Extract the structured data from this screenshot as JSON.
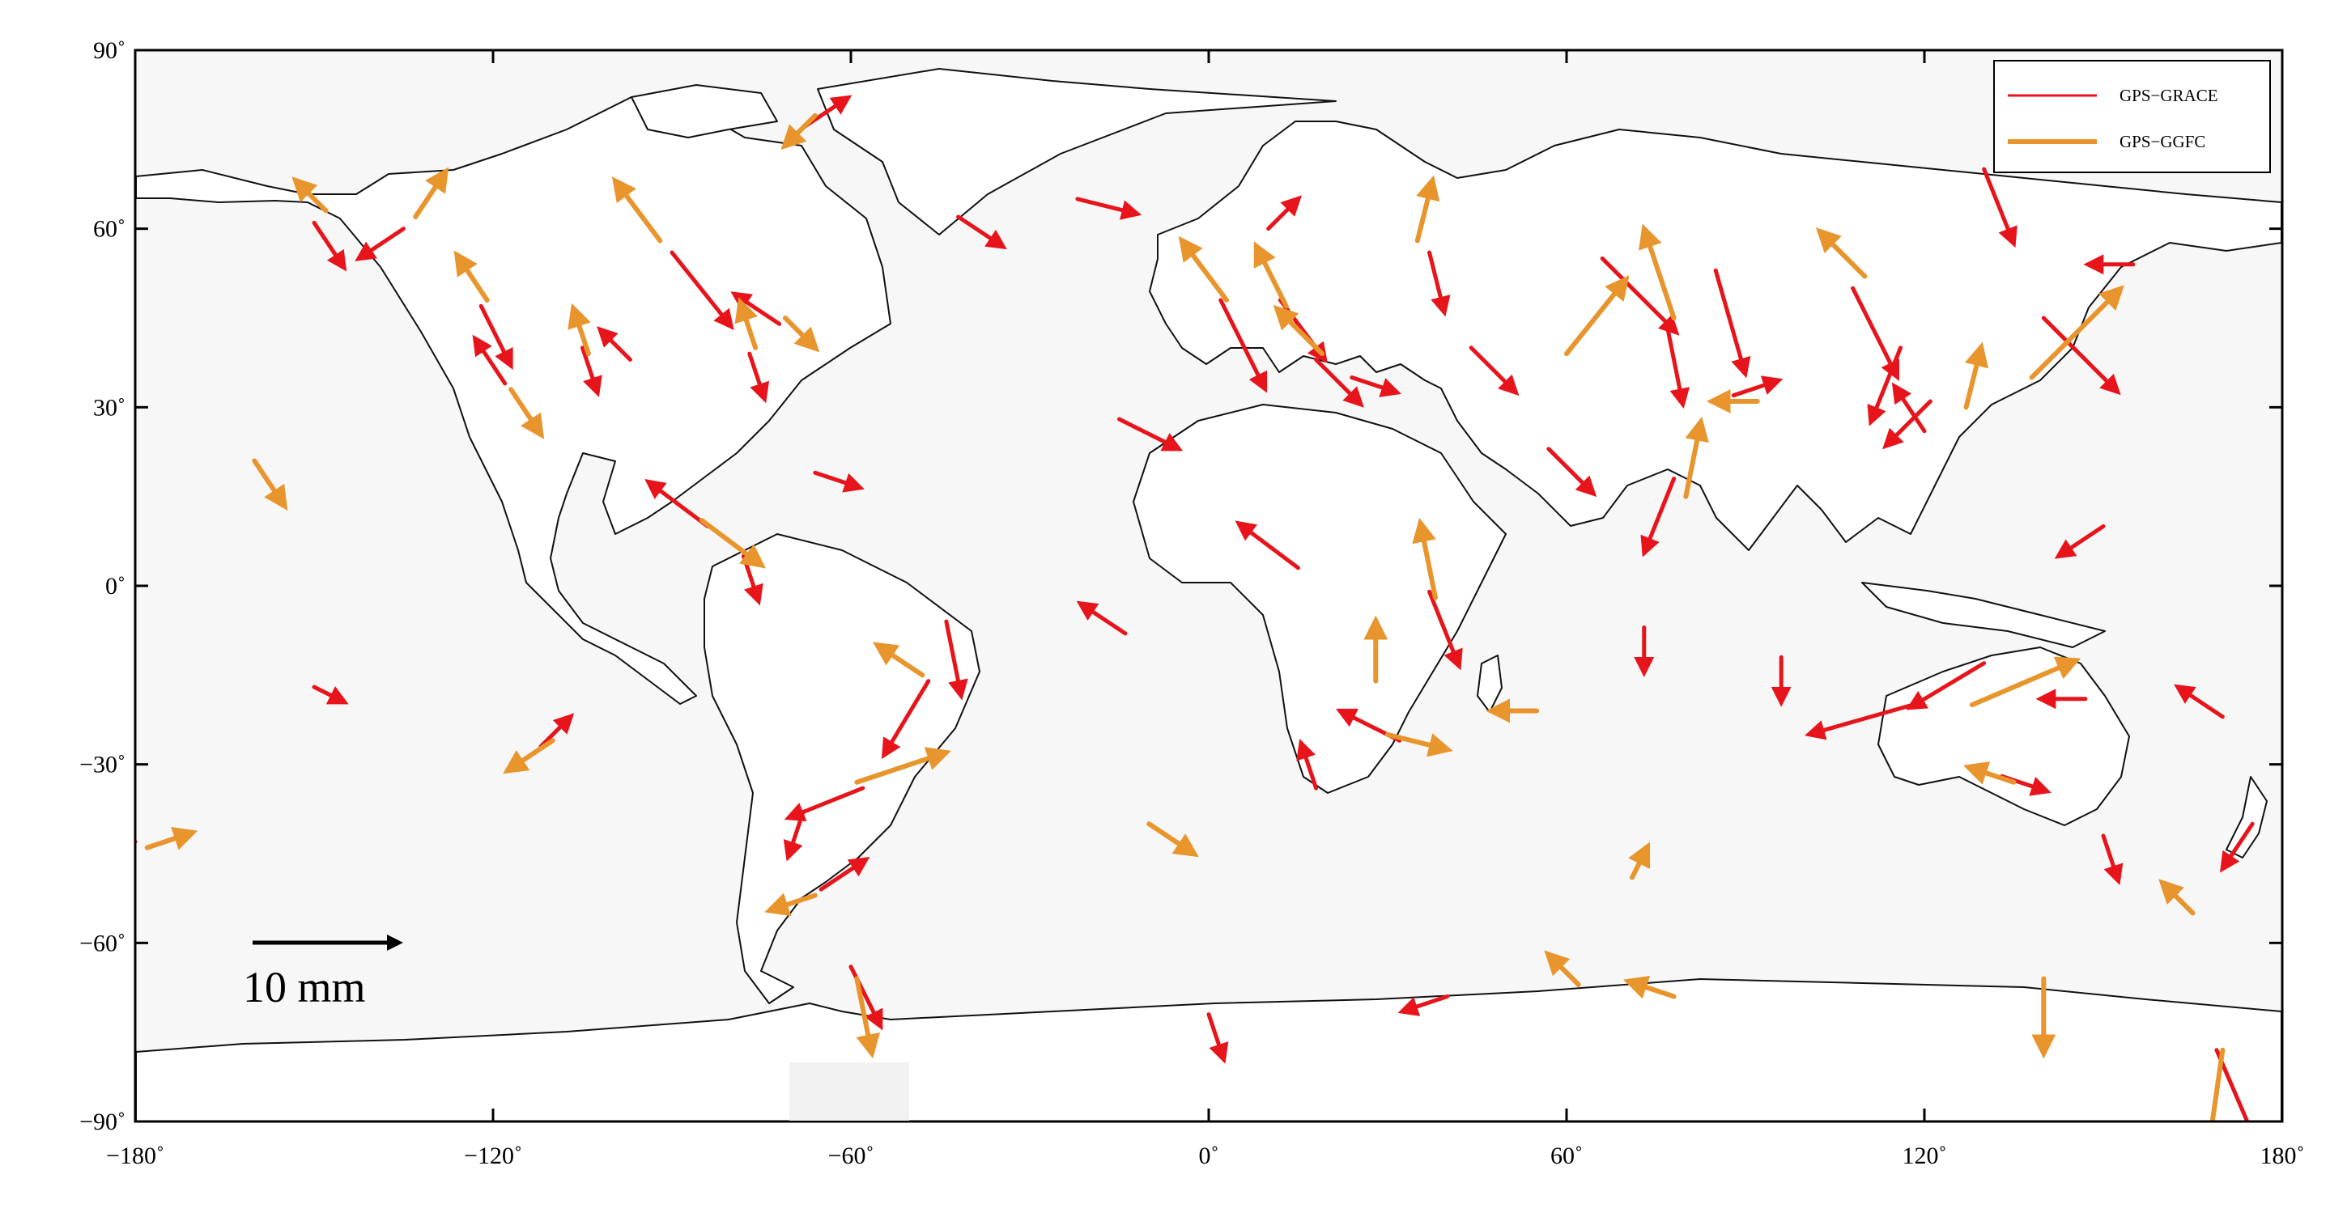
{
  "map": {
    "projection": "equirectangular",
    "lon_range": [
      -180,
      180
    ],
    "lat_range": [
      -90,
      90
    ],
    "ocean_color": "#f7f7f7",
    "land_color": "#ffffff",
    "coast_color": "#111111",
    "x_ticks": [
      {
        "value": -180,
        "label": "−180˚"
      },
      {
        "value": -120,
        "label": "−120˚"
      },
      {
        "value": -60,
        "label": "−60˚"
      },
      {
        "value": 0,
        "label": "0˚"
      },
      {
        "value": 60,
        "label": "60˚"
      },
      {
        "value": 120,
        "label": "120˚"
      },
      {
        "value": 180,
        "label": "180˚"
      }
    ],
    "y_ticks": [
      {
        "value": 90,
        "label": "90˚"
      },
      {
        "value": 60,
        "label": "60˚"
      },
      {
        "value": 30,
        "label": "30˚"
      },
      {
        "value": 0,
        "label": "0˚"
      },
      {
        "value": -30,
        "label": "−30˚"
      },
      {
        "value": -60,
        "label": "−60˚"
      },
      {
        "value": -90,
        "label": "−90˚"
      }
    ]
  },
  "legend": {
    "items": [
      {
        "label": "GPS−GRACE",
        "color": "#e8141b"
      },
      {
        "label": "GPS−GGFC",
        "color": "#e8952d"
      }
    ]
  },
  "scale": {
    "label": "10 mm",
    "length_mm": 10
  },
  "chart_data": {
    "type": "scatter",
    "units": "mm",
    "series": [
      {
        "name": "GPS−GRACE",
        "color": "#e8141b",
        "vectors": [
          {
            "lon": -122,
            "lat": 47,
            "dx": 2,
            "dy": -4
          },
          {
            "lon": -118,
            "lat": 34,
            "dx": -2,
            "dy": 3
          },
          {
            "lon": -105,
            "lat": 40,
            "dx": 1,
            "dy": -3
          },
          {
            "lon": -97,
            "lat": 38,
            "dx": -2,
            "dy": 2
          },
          {
            "lon": -90,
            "lat": 56,
            "dx": 4,
            "dy": -5
          },
          {
            "lon": -77,
            "lat": 39,
            "dx": 1,
            "dy": -3
          },
          {
            "lon": -72,
            "lat": 44,
            "dx": -3,
            "dy": 2
          },
          {
            "lon": -66,
            "lat": 19,
            "dx": 3,
            "dy": -1
          },
          {
            "lon": -150,
            "lat": 61,
            "dx": 2,
            "dy": -3
          },
          {
            "lon": -135,
            "lat": 60,
            "dx": -3,
            "dy": -2
          },
          {
            "lon": -68,
            "lat": 77,
            "dx": 3,
            "dy": 2
          },
          {
            "lon": -42,
            "lat": 62,
            "dx": 3,
            "dy": -2
          },
          {
            "lon": -22,
            "lat": 65,
            "dx": 4,
            "dy": -1
          },
          {
            "lon": -84,
            "lat": 10,
            "dx": -4,
            "dy": 3
          },
          {
            "lon": -78,
            "lat": 5,
            "dx": 1,
            "dy": -3
          },
          {
            "lon": -47,
            "lat": -16,
            "dx": -3,
            "dy": -5
          },
          {
            "lon": -44,
            "lat": -6,
            "dx": 1,
            "dy": -5
          },
          {
            "lon": -58,
            "lat": -34,
            "dx": -5,
            "dy": -2
          },
          {
            "lon": -68,
            "lat": -38,
            "dx": -1,
            "dy": -3
          },
          {
            "lon": -65,
            "lat": -51,
            "dx": 3,
            "dy": 2
          },
          {
            "lon": -60,
            "lat": -64,
            "dx": 2,
            "dy": -4
          },
          {
            "lon": -180,
            "lat": -43,
            "dx": -3,
            "dy": -1
          },
          {
            "lon": -150,
            "lat": -17,
            "dx": 2,
            "dy": -1
          },
          {
            "lon": -112,
            "lat": -27,
            "dx": 2,
            "dy": 2
          },
          {
            "lon": -14,
            "lat": -8,
            "dx": -3,
            "dy": 2
          },
          {
            "lon": -15,
            "lat": 28,
            "dx": 4,
            "dy": -2
          },
          {
            "lon": 2,
            "lat": 48,
            "dx": 3,
            "dy": -6
          },
          {
            "lon": 12,
            "lat": 48,
            "dx": 3,
            "dy": -4
          },
          {
            "lon": 18,
            "lat": 38,
            "dx": 3,
            "dy": -3
          },
          {
            "lon": 24,
            "lat": 35,
            "dx": 3,
            "dy": -1
          },
          {
            "lon": 10,
            "lat": 60,
            "dx": 2,
            "dy": 2
          },
          {
            "lon": 37,
            "lat": 56,
            "dx": 1,
            "dy": -4
          },
          {
            "lon": 44,
            "lat": 40,
            "dx": 3,
            "dy": -3
          },
          {
            "lon": 57,
            "lat": 23,
            "dx": 3,
            "dy": -3
          },
          {
            "lon": 66,
            "lat": 55,
            "dx": 5,
            "dy": -5
          },
          {
            "lon": 77,
            "lat": 43,
            "dx": 1,
            "dy": -5
          },
          {
            "lon": 85,
            "lat": 53,
            "dx": 2,
            "dy": -7
          },
          {
            "lon": 88,
            "lat": 32,
            "dx": 3,
            "dy": 1
          },
          {
            "lon": 78,
            "lat": 18,
            "dx": -2,
            "dy": -5
          },
          {
            "lon": 108,
            "lat": 50,
            "dx": 3,
            "dy": -6
          },
          {
            "lon": 116,
            "lat": 40,
            "dx": -2,
            "dy": -5
          },
          {
            "lon": 120,
            "lat": 26,
            "dx": -2,
            "dy": 3
          },
          {
            "lon": 121,
            "lat": 31,
            "dx": -3,
            "dy": -3
          },
          {
            "lon": 130,
            "lat": 70,
            "dx": 2,
            "dy": -5
          },
          {
            "lon": 140,
            "lat": 45,
            "dx": 5,
            "dy": -5
          },
          {
            "lon": 150,
            "lat": 10,
            "dx": -3,
            "dy": -2
          },
          {
            "lon": 155,
            "lat": 54,
            "dx": -3,
            "dy": 0
          },
          {
            "lon": 118,
            "lat": -20,
            "dx": -7,
            "dy": -2
          },
          {
            "lon": 130,
            "lat": -13,
            "dx": -5,
            "dy": -3
          },
          {
            "lon": 147,
            "lat": -19,
            "dx": -3,
            "dy": 0
          },
          {
            "lon": 133,
            "lat": -32,
            "dx": 3,
            "dy": -1
          },
          {
            "lon": 150,
            "lat": -42,
            "dx": 1,
            "dy": -3
          },
          {
            "lon": 170,
            "lat": -22,
            "dx": -3,
            "dy": 2
          },
          {
            "lon": 175,
            "lat": -40,
            "dx": -2,
            "dy": -3
          },
          {
            "lon": 32,
            "lat": -26,
            "dx": -4,
            "dy": 2
          },
          {
            "lon": 18,
            "lat": -34,
            "dx": -1,
            "dy": 3
          },
          {
            "lon": 37,
            "lat": -1,
            "dx": 2,
            "dy": -5
          },
          {
            "lon": 15,
            "lat": 3,
            "dx": -4,
            "dy": 3
          },
          {
            "lon": 73,
            "lat": -7,
            "dx": 0,
            "dy": -3
          },
          {
            "lon": 96,
            "lat": -12,
            "dx": 0,
            "dy": -3
          },
          {
            "lon": 169,
            "lat": -78,
            "dx": 3,
            "dy": -7
          },
          {
            "lon": 0,
            "lat": -72,
            "dx": 1,
            "dy": -3
          },
          {
            "lon": 40,
            "lat": -69,
            "dx": -3,
            "dy": -1
          }
        ]
      },
      {
        "name": "GPS−GGFC",
        "color": "#e8952d",
        "vectors": [
          {
            "lon": -121,
            "lat": 48,
            "dx": -2,
            "dy": 3
          },
          {
            "lon": -117,
            "lat": 33,
            "dx": 2,
            "dy": -3
          },
          {
            "lon": -104,
            "lat": 39,
            "dx": -1,
            "dy": 3
          },
          {
            "lon": -92,
            "lat": 58,
            "dx": -3,
            "dy": 4
          },
          {
            "lon": -76,
            "lat": 40,
            "dx": -1,
            "dy": 3
          },
          {
            "lon": -71,
            "lat": 45,
            "dx": 2,
            "dy": -2
          },
          {
            "lon": -148,
            "lat": 63,
            "dx": -2,
            "dy": 2
          },
          {
            "lon": -133,
            "lat": 62,
            "dx": 2,
            "dy": 3
          },
          {
            "lon": -66,
            "lat": 79,
            "dx": -2,
            "dy": -2
          },
          {
            "lon": -85,
            "lat": 11,
            "dx": 4,
            "dy": -3
          },
          {
            "lon": -48,
            "lat": -15,
            "dx": -3,
            "dy": 2
          },
          {
            "lon": -59,
            "lat": -33,
            "dx": 6,
            "dy": 2
          },
          {
            "lon": -66,
            "lat": -52,
            "dx": -3,
            "dy": -1
          },
          {
            "lon": -59,
            "lat": -66,
            "dx": 1,
            "dy": -5
          },
          {
            "lon": -178,
            "lat": -44,
            "dx": 3,
            "dy": 1
          },
          {
            "lon": -160,
            "lat": 21,
            "dx": 2,
            "dy": -3
          },
          {
            "lon": -110,
            "lat": -26,
            "dx": -3,
            "dy": -2
          },
          {
            "lon": -10,
            "lat": -40,
            "dx": 3,
            "dy": -2
          },
          {
            "lon": 3,
            "lat": 48,
            "dx": -3,
            "dy": 4
          },
          {
            "lon": 13,
            "lat": 47,
            "dx": -2,
            "dy": 4
          },
          {
            "lon": 19,
            "lat": 39,
            "dx": -3,
            "dy": 3
          },
          {
            "lon": 35,
            "lat": 58,
            "dx": 1,
            "dy": 4
          },
          {
            "lon": 60,
            "lat": 39,
            "dx": 4,
            "dy": 5
          },
          {
            "lon": 78,
            "lat": 45,
            "dx": -2,
            "dy": 6
          },
          {
            "lon": 80,
            "lat": 15,
            "dx": 1,
            "dy": 5
          },
          {
            "lon": 92,
            "lat": 31,
            "dx": -3,
            "dy": 0
          },
          {
            "lon": 110,
            "lat": 52,
            "dx": -3,
            "dy": 3
          },
          {
            "lon": 127,
            "lat": 30,
            "dx": 1,
            "dy": 4
          },
          {
            "lon": 138,
            "lat": 35,
            "dx": 6,
            "dy": 6
          },
          {
            "lon": 128,
            "lat": -20,
            "dx": 7,
            "dy": 3
          },
          {
            "lon": 135,
            "lat": -33,
            "dx": -3,
            "dy": 1
          },
          {
            "lon": 165,
            "lat": -55,
            "dx": -2,
            "dy": 2
          },
          {
            "lon": 30,
            "lat": -25,
            "dx": 4,
            "dy": -1
          },
          {
            "lon": 38,
            "lat": -2,
            "dx": -1,
            "dy": 5
          },
          {
            "lon": 28,
            "lat": -16,
            "dx": 0,
            "dy": 4
          },
          {
            "lon": 55,
            "lat": -21,
            "dx": -3,
            "dy": 0
          },
          {
            "lon": 71,
            "lat": -49,
            "dx": 1,
            "dy": 2
          },
          {
            "lon": 140,
            "lat": -66,
            "dx": 0,
            "dy": -5
          },
          {
            "lon": 170,
            "lat": -78,
            "dx": -1,
            "dy": -7
          },
          {
            "lon": 78,
            "lat": -69,
            "dx": -3,
            "dy": 1
          },
          {
            "lon": 62,
            "lat": -67,
            "dx": -2,
            "dy": 2
          }
        ]
      }
    ]
  }
}
